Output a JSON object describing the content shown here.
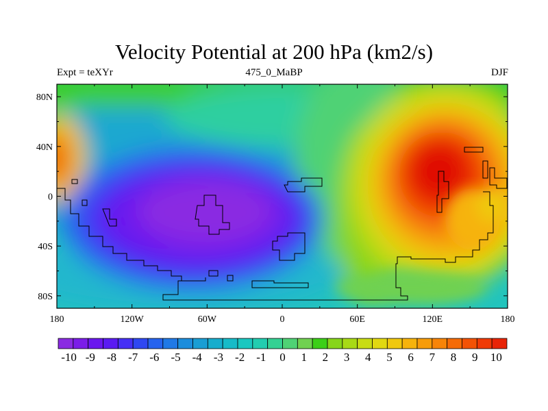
{
  "title": "Velocity Potential at 200 hPa (km2/s)",
  "left_string": "Expt = teXYr",
  "center_string": "475_0_MaBP",
  "right_string": "DJF",
  "chart_data": {
    "type": "heatmap",
    "lon_ticks": [
      "180",
      "120W",
      "60W",
      "0",
      "60E",
      "120E",
      "180"
    ],
    "lat_ticks": [
      "80N",
      "40N",
      "0",
      "40S",
      "80S"
    ],
    "colorbar_labels": [
      "-10",
      "-9",
      "-8",
      "-7",
      "-6",
      "-5",
      "-4",
      "-3",
      "-2",
      "-1",
      "0",
      "1",
      "2",
      "3",
      "4",
      "5",
      "6",
      "7",
      "8",
      "9",
      "10"
    ],
    "colorbar_range": [
      -10.5,
      10.5
    ],
    "colors": [
      "#8a2be2",
      "#7b1de8",
      "#6a17ee",
      "#5a1bf2",
      "#4630f5",
      "#2f48f2",
      "#2663ee",
      "#2079e6",
      "#1c8ddc",
      "#1a9ed4",
      "#17adcd",
      "#17bbc8",
      "#1ac7c0",
      "#22cdb0",
      "#35d193",
      "#4fd275",
      "#70d151",
      "#3ccf18",
      "#87d51a",
      "#a8da16",
      "#c8dc14",
      "#e1d811",
      "#f0c80e",
      "#f6b30c",
      "#f79c0a",
      "#f78408",
      "#f56b07",
      "#f35206",
      "#f03a06",
      "#e82407"
    ],
    "features": [
      {
        "name": "negative-center",
        "lon": -55,
        "lat": -20,
        "value": -10
      },
      {
        "name": "positive-center",
        "lon": 120,
        "lat": 20,
        "value": 10
      },
      {
        "name": "positive-center-west",
        "lon": 180,
        "lat": 20,
        "value": 8
      }
    ]
  }
}
